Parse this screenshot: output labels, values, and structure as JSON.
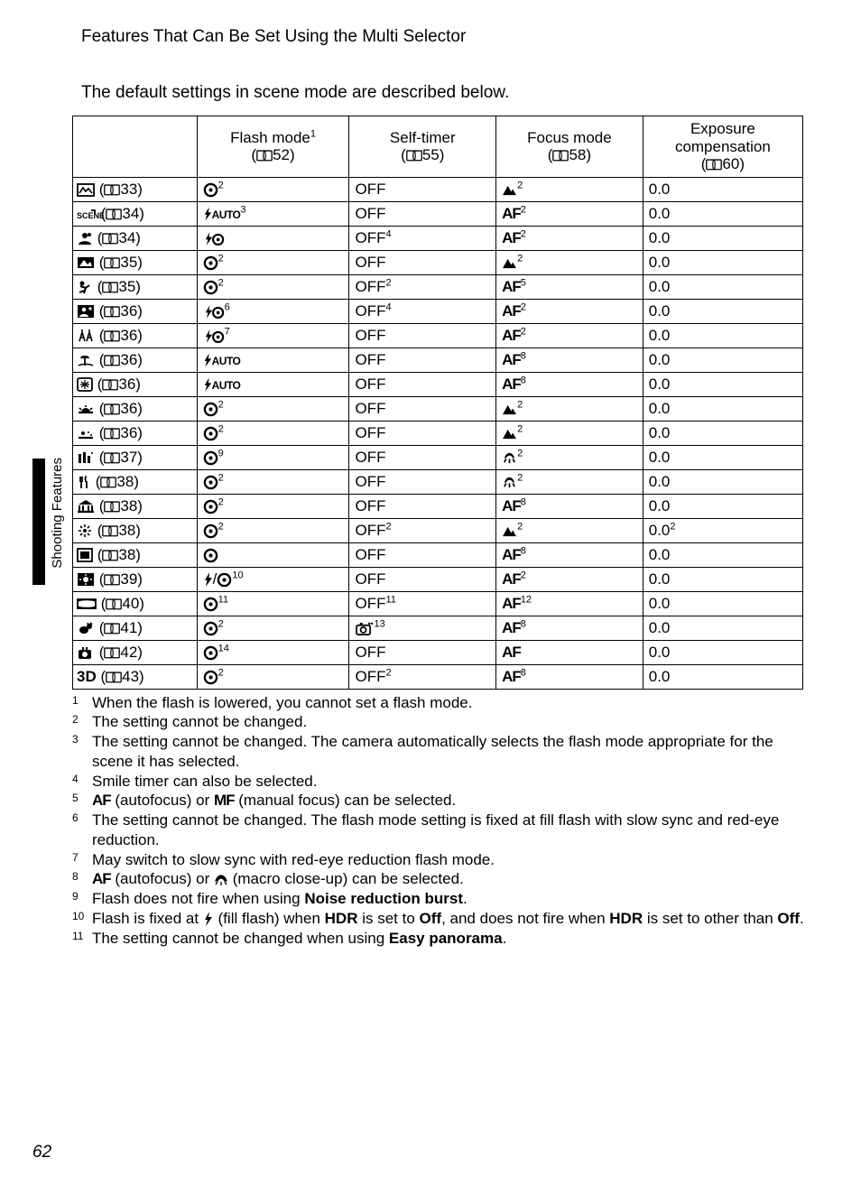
{
  "header": "Features That Can Be Set Using the Multi Selector",
  "intro": "The default settings in scene mode are described below.",
  "side_label": "Shooting Features",
  "page_number": "62",
  "columns": [
    {
      "label1": "Flash mode",
      "sup": "1",
      "ref": "52"
    },
    {
      "label1": "Self-timer",
      "sup": "",
      "ref": "55"
    },
    {
      "label1": "Focus mode",
      "sup": "",
      "ref": "58"
    },
    {
      "label1": "Exposure",
      "label2": "compensation",
      "sup": "",
      "ref": "60"
    }
  ],
  "rows": [
    {
      "icon": "scene-auto",
      "ref": "33",
      "flash": {
        "sym": "noflash",
        "sup": "2"
      },
      "self": {
        "txt": "OFF",
        "sup": ""
      },
      "focus": {
        "sym": "mountain",
        "sup": "2"
      },
      "exp": {
        "txt": "0.0",
        "sup": ""
      }
    },
    {
      "icon": "scene-sel",
      "ref": "34",
      "flash": {
        "sym": "auto-txt",
        "sup": "3"
      },
      "self": {
        "txt": "OFF",
        "sup": ""
      },
      "focus": {
        "sym": "AF",
        "sup": "2"
      },
      "exp": {
        "txt": "0.0",
        "sup": ""
      }
    },
    {
      "icon": "portrait",
      "ref": "34",
      "flash": {
        "sym": "redeye",
        "sup": ""
      },
      "self": {
        "txt": "OFF",
        "sup": "4"
      },
      "focus": {
        "sym": "AF",
        "sup": "2"
      },
      "exp": {
        "txt": "0.0",
        "sup": ""
      }
    },
    {
      "icon": "landscape",
      "ref": "35",
      "flash": {
        "sym": "noflash",
        "sup": "2"
      },
      "self": {
        "txt": "OFF",
        "sup": ""
      },
      "focus": {
        "sym": "mountain",
        "sup": "2"
      },
      "exp": {
        "txt": "0.0",
        "sup": ""
      }
    },
    {
      "icon": "sports",
      "ref": "35",
      "flash": {
        "sym": "noflash",
        "sup": "2"
      },
      "self": {
        "txt": "OFF",
        "sup": "2"
      },
      "focus": {
        "sym": "AF",
        "sup": "5"
      },
      "exp": {
        "txt": "0.0",
        "sup": ""
      }
    },
    {
      "icon": "night-portrait",
      "ref": "36",
      "flash": {
        "sym": "redeye",
        "sup": "6"
      },
      "self": {
        "txt": "OFF",
        "sup": "4"
      },
      "focus": {
        "sym": "AF",
        "sup": "2"
      },
      "exp": {
        "txt": "0.0",
        "sup": ""
      }
    },
    {
      "icon": "party",
      "ref": "36",
      "flash": {
        "sym": "redeye",
        "sup": "7"
      },
      "self": {
        "txt": "OFF",
        "sup": ""
      },
      "focus": {
        "sym": "AF",
        "sup": "2"
      },
      "exp": {
        "txt": "0.0",
        "sup": ""
      }
    },
    {
      "icon": "beach",
      "ref": "36",
      "flash": {
        "sym": "auto-txt",
        "sup": ""
      },
      "self": {
        "txt": "OFF",
        "sup": ""
      },
      "focus": {
        "sym": "AF",
        "sup": "8"
      },
      "exp": {
        "txt": "0.0",
        "sup": ""
      }
    },
    {
      "icon": "snow",
      "ref": "36",
      "flash": {
        "sym": "auto-txt",
        "sup": ""
      },
      "self": {
        "txt": "OFF",
        "sup": ""
      },
      "focus": {
        "sym": "AF",
        "sup": "8"
      },
      "exp": {
        "txt": "0.0",
        "sup": ""
      }
    },
    {
      "icon": "sunset",
      "ref": "36",
      "flash": {
        "sym": "noflash",
        "sup": "2"
      },
      "self": {
        "txt": "OFF",
        "sup": ""
      },
      "focus": {
        "sym": "mountain",
        "sup": "2"
      },
      "exp": {
        "txt": "0.0",
        "sup": ""
      }
    },
    {
      "icon": "dusk",
      "ref": "36",
      "flash": {
        "sym": "noflash",
        "sup": "2"
      },
      "self": {
        "txt": "OFF",
        "sup": ""
      },
      "focus": {
        "sym": "mountain",
        "sup": "2"
      },
      "exp": {
        "txt": "0.0",
        "sup": ""
      }
    },
    {
      "icon": "night-land",
      "ref": "37",
      "flash": {
        "sym": "noflash",
        "sup": "9"
      },
      "self": {
        "txt": "OFF",
        "sup": ""
      },
      "focus": {
        "sym": "macro",
        "sup": "2"
      },
      "exp": {
        "txt": "0.0",
        "sup": ""
      }
    },
    {
      "icon": "food",
      "ref": "38",
      "flash": {
        "sym": "noflash",
        "sup": "2"
      },
      "self": {
        "txt": "OFF",
        "sup": ""
      },
      "focus": {
        "sym": "macro",
        "sup": "2"
      },
      "exp": {
        "txt": "0.0",
        "sup": ""
      }
    },
    {
      "icon": "museum",
      "ref": "38",
      "flash": {
        "sym": "noflash",
        "sup": "2"
      },
      "self": {
        "txt": "OFF",
        "sup": ""
      },
      "focus": {
        "sym": "AF",
        "sup": "8"
      },
      "exp": {
        "txt": "0.0",
        "sup": ""
      }
    },
    {
      "icon": "fireworks",
      "ref": "38",
      "flash": {
        "sym": "noflash",
        "sup": "2"
      },
      "self": {
        "txt": "OFF",
        "sup": "2"
      },
      "focus": {
        "sym": "mountain",
        "sup": "2"
      },
      "exp": {
        "txt": "0.0",
        "sup": "2"
      }
    },
    {
      "icon": "copy",
      "ref": "38",
      "flash": {
        "sym": "noflash",
        "sup": ""
      },
      "self": {
        "txt": "OFF",
        "sup": ""
      },
      "focus": {
        "sym": "AF",
        "sup": "8"
      },
      "exp": {
        "txt": "0.0",
        "sup": ""
      }
    },
    {
      "icon": "backlight",
      "ref": "39",
      "flash": {
        "sym": "fill-noflash",
        "sup": "10"
      },
      "self": {
        "txt": "OFF",
        "sup": ""
      },
      "focus": {
        "sym": "AF",
        "sup": "2"
      },
      "exp": {
        "txt": "0.0",
        "sup": ""
      }
    },
    {
      "icon": "panorama",
      "ref": "40",
      "flash": {
        "sym": "noflash",
        "sup": "11"
      },
      "self": {
        "txt": "OFF",
        "sup": "11"
      },
      "focus": {
        "sym": "AF",
        "sup": "12"
      },
      "exp": {
        "txt": "0.0",
        "sup": ""
      }
    },
    {
      "icon": "pet",
      "ref": "41",
      "flash": {
        "sym": "noflash",
        "sup": "2"
      },
      "self": {
        "sym": "pet-timer",
        "sup": "13"
      },
      "focus": {
        "sym": "AF",
        "sup": "8"
      },
      "exp": {
        "txt": "0.0",
        "sup": ""
      }
    },
    {
      "icon": "moon",
      "ref": "42",
      "flash": {
        "sym": "noflash",
        "sup": "14"
      },
      "self": {
        "txt": "OFF",
        "sup": ""
      },
      "focus": {
        "sym": "AF",
        "sup": ""
      },
      "exp": {
        "txt": "0.0",
        "sup": ""
      }
    },
    {
      "icon": "3d",
      "ref": "43",
      "flash": {
        "sym": "noflash",
        "sup": "2"
      },
      "self": {
        "txt": "OFF",
        "sup": "2"
      },
      "focus": {
        "sym": "AF",
        "sup": "8"
      },
      "exp": {
        "txt": "0.0",
        "sup": ""
      }
    }
  ],
  "footnotes": [
    {
      "n": "1",
      "t": "When the flash is lowered, you cannot set a flash mode."
    },
    {
      "n": "2",
      "t": "The setting cannot be changed."
    },
    {
      "n": "3",
      "t": "The setting cannot be changed. The camera automatically selects the flash mode appropriate for the scene it has selected."
    },
    {
      "n": "4",
      "t": "Smile timer can also be selected."
    },
    {
      "n": "5",
      "html": "<span class='af'>AF</span> (autofocus) or <span class='mf'>MF</span> (manual focus) can be selected."
    },
    {
      "n": "6",
      "t": "The setting cannot be changed. The flash mode setting is fixed at fill flash with slow sync and red-eye reduction."
    },
    {
      "n": "7",
      "t": "May switch to slow sync with red-eye reduction flash mode."
    },
    {
      "n": "8",
      "html": "<span class='af'>AF</span> (autofocus) or <svg class='icon' width='16' height='14' viewBox='0 0 16 14'><path d='M8 2 C5 2 3 5 2 8 L4 8 C5 6 6 5 8 5 C10 5 11 6 12 8 L14 8 C13 5 11 2 8 2 Z M4 9 L2 12 M8 9 L8 13 M12 9 L14 12' fill='#000' stroke='#000' stroke-width='1.3'/></svg> (macro close-up) can be selected."
    },
    {
      "n": "9",
      "html": "Flash does not fire when using <span class='bold'>Noise reduction burst</span>."
    },
    {
      "n": "10",
      "html": "Flash is fixed at <svg class='icon' width='12' height='16' viewBox='0 0 12 16'><path d='M7 0 L2 9 L5 9 L3 16 L10 6 L6 6 Z' fill='#000'/></svg> (fill flash) when <span class='bold'>HDR</span> is set to <span class='bold'>Off</span>, and does not fire when <span class='bold'>HDR</span> is set to other than <span class='bold'>Off</span>."
    },
    {
      "n": "11",
      "html": "The setting cannot be changed when using <span class='bold'>Easy panorama</span>."
    }
  ]
}
